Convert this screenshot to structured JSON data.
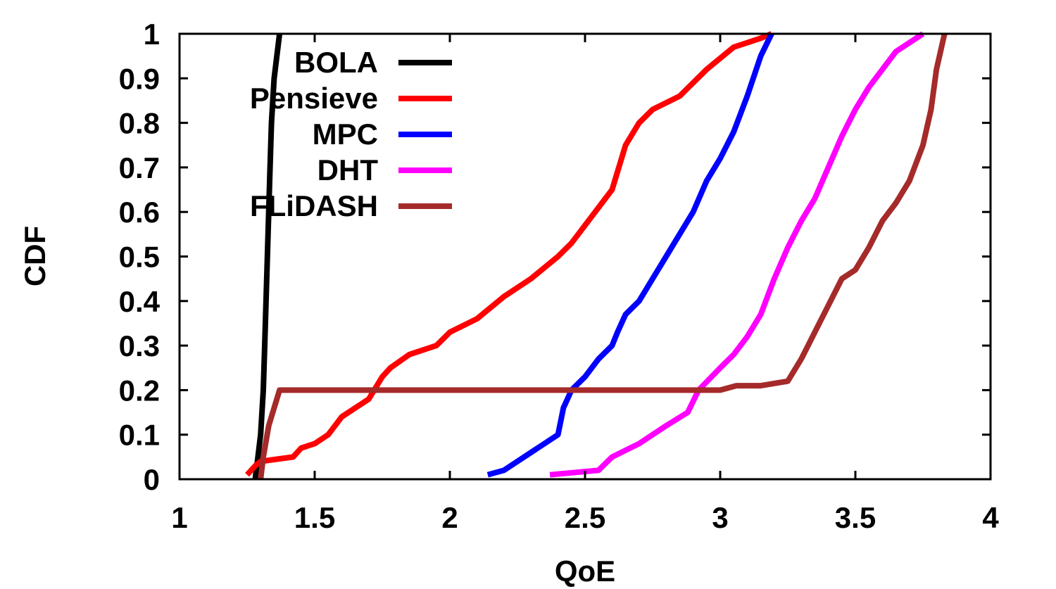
{
  "chart_data": {
    "type": "line",
    "title": "",
    "xlabel": "QoE",
    "ylabel": "CDF",
    "xlim": [
      1,
      4
    ],
    "ylim": [
      0,
      1
    ],
    "xticks": [
      "1",
      "1.5",
      "2",
      "2.5",
      "3",
      "3.5",
      "4"
    ],
    "yticks": [
      "0",
      "0.1",
      "0.2",
      "0.3",
      "0.4",
      "0.5",
      "0.6",
      "0.7",
      "0.8",
      "0.9",
      "1"
    ],
    "grid": false,
    "legend_position": "top-left",
    "series": [
      {
        "name": "BOLA",
        "color": "#000000",
        "x": [
          1.28,
          1.29,
          1.3,
          1.31,
          1.315,
          1.32,
          1.325,
          1.33,
          1.335,
          1.34,
          1.35,
          1.37
        ],
        "y": [
          0.0,
          0.05,
          0.1,
          0.2,
          0.3,
          0.4,
          0.5,
          0.6,
          0.7,
          0.8,
          0.9,
          1.0
        ]
      },
      {
        "name": "Pensieve",
        "color": "#ff0000",
        "x": [
          1.25,
          1.28,
          1.3,
          1.42,
          1.45,
          1.5,
          1.55,
          1.6,
          1.7,
          1.75,
          1.78,
          1.85,
          1.95,
          2.0,
          2.1,
          2.2,
          2.3,
          2.4,
          2.45,
          2.5,
          2.6,
          2.65,
          2.7,
          2.75,
          2.85,
          2.95,
          3.05,
          3.15,
          3.19
        ],
        "y": [
          0.01,
          0.03,
          0.04,
          0.05,
          0.07,
          0.08,
          0.1,
          0.14,
          0.18,
          0.23,
          0.25,
          0.28,
          0.3,
          0.33,
          0.36,
          0.41,
          0.45,
          0.5,
          0.53,
          0.57,
          0.65,
          0.75,
          0.8,
          0.83,
          0.86,
          0.92,
          0.97,
          0.99,
          1.0
        ]
      },
      {
        "name": "MPC",
        "color": "#0000ff",
        "x": [
          2.14,
          2.2,
          2.3,
          2.4,
          2.42,
          2.45,
          2.5,
          2.55,
          2.6,
          2.62,
          2.65,
          2.7,
          2.75,
          2.8,
          2.85,
          2.9,
          2.95,
          3.0,
          3.05,
          3.1,
          3.15,
          3.19
        ],
        "y": [
          0.01,
          0.02,
          0.06,
          0.1,
          0.16,
          0.2,
          0.23,
          0.27,
          0.3,
          0.33,
          0.37,
          0.4,
          0.45,
          0.5,
          0.55,
          0.6,
          0.67,
          0.72,
          0.78,
          0.86,
          0.95,
          1.0
        ]
      },
      {
        "name": "DHT",
        "color": "#ff00ff",
        "x": [
          2.37,
          2.55,
          2.6,
          2.7,
          2.8,
          2.88,
          2.92,
          3.0,
          3.05,
          3.1,
          3.15,
          3.2,
          3.25,
          3.3,
          3.35,
          3.4,
          3.45,
          3.5,
          3.55,
          3.6,
          3.65,
          3.7,
          3.75
        ],
        "y": [
          0.01,
          0.02,
          0.05,
          0.08,
          0.12,
          0.15,
          0.2,
          0.25,
          0.28,
          0.32,
          0.37,
          0.45,
          0.52,
          0.58,
          0.63,
          0.7,
          0.77,
          0.83,
          0.88,
          0.92,
          0.96,
          0.98,
          1.0
        ]
      },
      {
        "name": "FLiDASH",
        "color": "#a52a2a",
        "x": [
          1.3,
          1.31,
          1.33,
          1.35,
          1.37,
          3.0,
          3.06,
          3.15,
          3.25,
          3.3,
          3.35,
          3.4,
          3.45,
          3.5,
          3.55,
          3.6,
          3.65,
          3.7,
          3.75,
          3.78,
          3.8,
          3.83
        ],
        "y": [
          0.0,
          0.05,
          0.12,
          0.16,
          0.2,
          0.2,
          0.21,
          0.21,
          0.22,
          0.27,
          0.33,
          0.39,
          0.45,
          0.47,
          0.52,
          0.58,
          0.62,
          0.67,
          0.75,
          0.83,
          0.92,
          1.0
        ]
      }
    ]
  }
}
